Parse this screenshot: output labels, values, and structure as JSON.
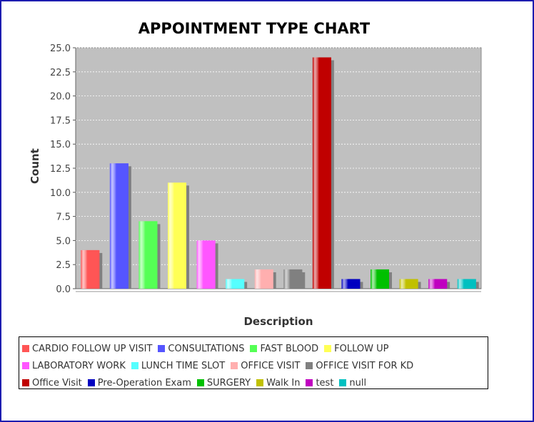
{
  "chart_data": {
    "type": "bar",
    "title": "APPOINTMENT TYPE CHART",
    "xlabel": "Description",
    "ylabel": "Count",
    "ylim": [
      0,
      25
    ],
    "yticks": [
      "0.0",
      "2.5",
      "5.0",
      "7.5",
      "10.0",
      "12.5",
      "15.0",
      "17.5",
      "20.0",
      "22.5",
      "25.0"
    ],
    "grid": true,
    "legend_position": "bottom",
    "series": [
      {
        "name": "CARDIO FOLLOW UP VISIT",
        "value": 4,
        "color": "#ff5555"
      },
      {
        "name": "CONSULTATIONS",
        "value": 13,
        "color": "#5555ff"
      },
      {
        "name": "FAST BLOOD",
        "value": 7,
        "color": "#55ff55"
      },
      {
        "name": "FOLLOW UP",
        "value": 11,
        "color": "#ffff55"
      },
      {
        "name": "LABORATORY WORK",
        "value": 5,
        "color": "#ff55ff"
      },
      {
        "name": "LUNCH TIME SLOT",
        "value": 1,
        "color": "#55ffff"
      },
      {
        "name": "OFFICE VISIT",
        "value": 2,
        "color": "#ffafaf"
      },
      {
        "name": "OFFICE VISIT FOR KD",
        "value": 2,
        "color": "#808080"
      },
      {
        "name": "Office Visit",
        "value": 24,
        "color": "#c00000"
      },
      {
        "name": "Pre-Operation Exam",
        "value": 1,
        "color": "#0000c0"
      },
      {
        "name": "SURGERY",
        "value": 2,
        "color": "#00c000"
      },
      {
        "name": "Walk In",
        "value": 1,
        "color": "#c0c000"
      },
      {
        "name": "test",
        "value": 1,
        "color": "#c000c0"
      },
      {
        "name": "null",
        "value": 1,
        "color": "#00c0c0"
      }
    ]
  },
  "legend_rows": [
    [
      0,
      1,
      2,
      3
    ],
    [
      4,
      5,
      6,
      7
    ],
    [
      8,
      9,
      10,
      11,
      12,
      13
    ]
  ]
}
